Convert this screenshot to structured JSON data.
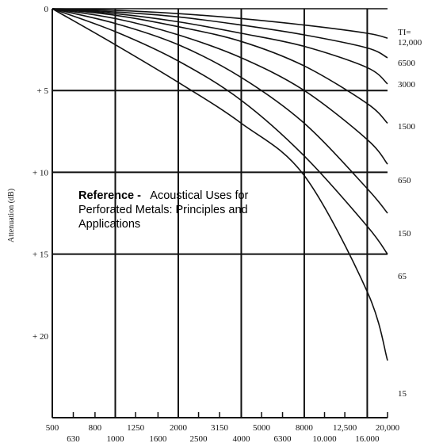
{
  "chart_data": {
    "type": "line",
    "xscale": "log",
    "ylabel": "Attenuation (dB)",
    "xlim": [
      500,
      20000
    ],
    "ylim": [
      0,
      25
    ],
    "y_inverted": true,
    "y_tick_values": [
      0,
      5,
      10,
      15,
      20
    ],
    "y_ticks": [
      "0",
      "+ 5",
      "+ 10",
      "+ 15",
      "+ 20"
    ],
    "x_tick_values": [
      500,
      630,
      800,
      1000,
      1250,
      1600,
      2000,
      2500,
      3150,
      4000,
      5000,
      6300,
      8000,
      10000,
      12500,
      16000,
      20000
    ],
    "x_ticks": [
      "500",
      "630",
      "800",
      "1000",
      "1250",
      "1600",
      "2000",
      "2500",
      "3150",
      "4000",
      "5000",
      "6300",
      "8000",
      "10.000",
      "12,500",
      "16.000",
      "20,000"
    ],
    "grid_x": [
      1000,
      2000,
      4000,
      8000,
      16000
    ],
    "grid_y": [
      5,
      10,
      15
    ],
    "series_label_prefix": "TI=",
    "series": [
      {
        "name": "12,000",
        "values": [
          [
            500,
            0
          ],
          [
            1000,
            0.1
          ],
          [
            2000,
            0.3
          ],
          [
            4000,
            0.6
          ],
          [
            8000,
            1.0
          ],
          [
            16000,
            1.5
          ],
          [
            20000,
            1.8
          ]
        ]
      },
      {
        "name": "6500",
        "values": [
          [
            500,
            0
          ],
          [
            1000,
            0.2
          ],
          [
            2000,
            0.5
          ],
          [
            4000,
            1.0
          ],
          [
            8000,
            1.6
          ],
          [
            16000,
            2.4
          ],
          [
            20000,
            3.0
          ]
        ]
      },
      {
        "name": "3000",
        "values": [
          [
            500,
            0
          ],
          [
            1000,
            0.3
          ],
          [
            2000,
            0.8
          ],
          [
            4000,
            1.5
          ],
          [
            8000,
            2.3
          ],
          [
            16000,
            3.6
          ],
          [
            20000,
            4.6
          ]
        ]
      },
      {
        "name": "1500",
        "values": [
          [
            500,
            0
          ],
          [
            1000,
            0.4
          ],
          [
            2000,
            1.1
          ],
          [
            4000,
            2.0
          ],
          [
            8000,
            3.5
          ],
          [
            16000,
            5.8
          ],
          [
            20000,
            7.0
          ]
        ]
      },
      {
        "name": "650",
        "values": [
          [
            500,
            0
          ],
          [
            1000,
            0.6
          ],
          [
            2000,
            1.6
          ],
          [
            4000,
            3.0
          ],
          [
            8000,
            5.0
          ],
          [
            16000,
            8.0
          ],
          [
            20000,
            9.5
          ]
        ]
      },
      {
        "name": "150",
        "values": [
          [
            500,
            0
          ],
          [
            1000,
            0.9
          ],
          [
            2000,
            2.2
          ],
          [
            4000,
            4.2
          ],
          [
            8000,
            7.0
          ],
          [
            16000,
            11.0
          ],
          [
            20000,
            12.5
          ]
        ]
      },
      {
        "name": "65",
        "values": [
          [
            500,
            0
          ],
          [
            1000,
            1.4
          ],
          [
            2000,
            3.2
          ],
          [
            4000,
            5.6
          ],
          [
            8000,
            9.0
          ],
          [
            16000,
            13.3
          ],
          [
            20000,
            15.0
          ]
        ]
      },
      {
        "name": "15",
        "values": [
          [
            500,
            0
          ],
          [
            1000,
            2.2
          ],
          [
            2000,
            4.5
          ],
          [
            4000,
            7.0
          ],
          [
            8000,
            10.2
          ],
          [
            16000,
            17.3
          ],
          [
            20000,
            21.5
          ]
        ]
      }
    ]
  },
  "reference": {
    "title": "Reference -",
    "text": "Acoustical Uses for Perforated Metals: Principles and Applications"
  },
  "colors": {
    "line": "#111111",
    "background": "#ffffff"
  }
}
